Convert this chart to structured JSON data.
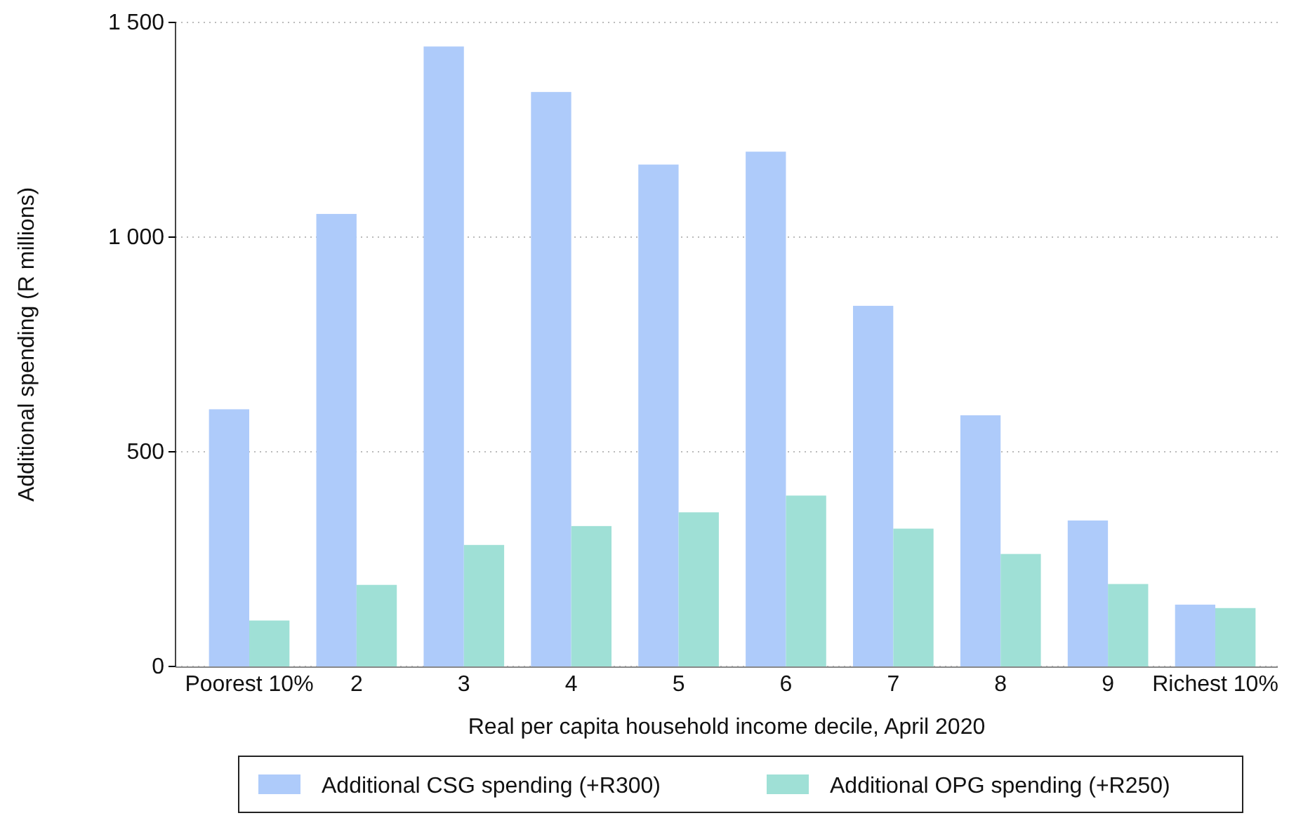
{
  "chart_data": {
    "type": "bar",
    "xlabel": "Real per capita household income decile, April 2020",
    "ylabel": "Additional spending (R millions)",
    "categories": [
      "Poorest 10%",
      "2",
      "3",
      "4",
      "5",
      "6",
      "7",
      "8",
      "9",
      "Richest 10%"
    ],
    "series": [
      {
        "name": "Additional CSG spending (+R300)",
        "color": "#aecbfa",
        "values": [
          599,
          1054,
          1444,
          1338,
          1169,
          1199,
          840,
          585,
          340,
          144
        ]
      },
      {
        "name": "Additional OPG spending (+R250)",
        "color": "#9fe0d6",
        "values": [
          107,
          190,
          283,
          327,
          359,
          398,
          321,
          262,
          192,
          136
        ]
      }
    ],
    "ylim": [
      0,
      1500
    ],
    "yticks": [
      0,
      500,
      {
        "value": 1000,
        "label": "1 000"
      },
      {
        "value": 1500,
        "label": "1 500"
      }
    ],
    "grid": "y",
    "legend": "bottom"
  }
}
